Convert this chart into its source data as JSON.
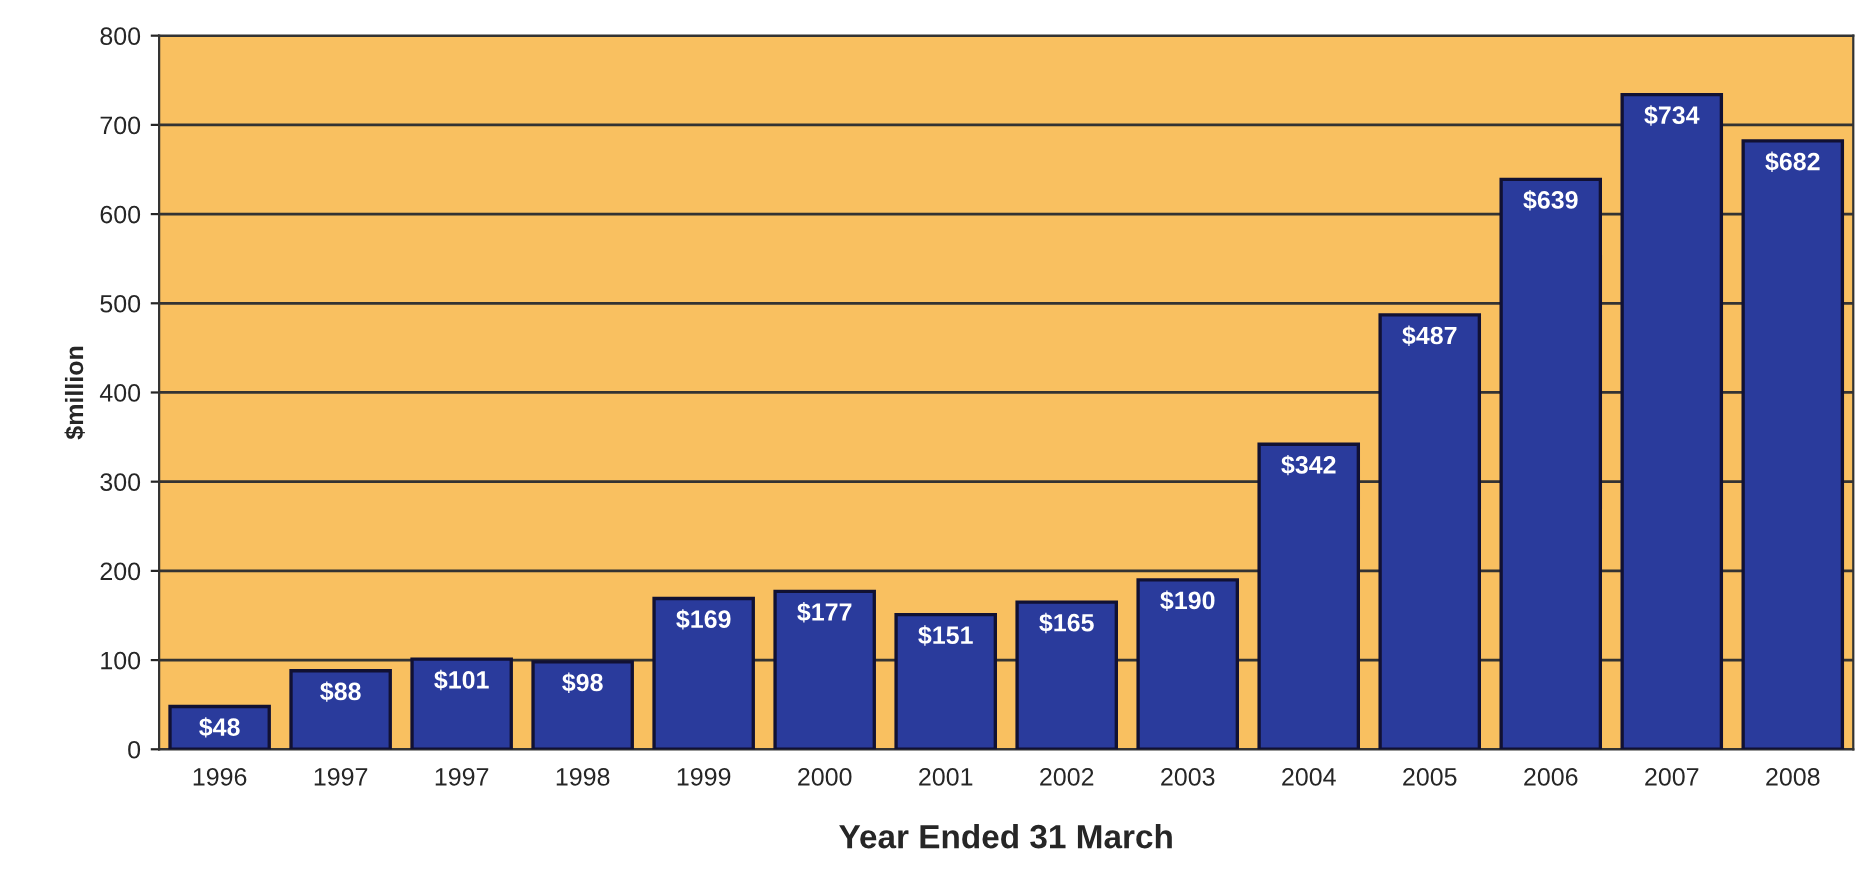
{
  "chart_data": {
    "type": "bar",
    "xlabel": "Year Ended 31 March",
    "ylabel": "$million",
    "categories": [
      "1996",
      "1997",
      "1997",
      "1998",
      "1999",
      "2000",
      "2001",
      "2002",
      "2003",
      "2004",
      "2005",
      "2006",
      "2007",
      "2008"
    ],
    "values": [
      48,
      88,
      101,
      98,
      169,
      177,
      151,
      165,
      190,
      342,
      487,
      639,
      734,
      682
    ],
    "value_labels": [
      "$48",
      "$88",
      "$101",
      "$98",
      "$169",
      "$177",
      "$151",
      "$165",
      "$190",
      "$342",
      "$487",
      "$639",
      "$734",
      "$682"
    ],
    "color": "#2a3b9c",
    "ylim": [
      0,
      800
    ],
    "yticks": [
      0,
      100,
      200,
      300,
      400,
      500,
      600,
      700,
      800
    ],
    "grid": "y",
    "legend": false
  }
}
